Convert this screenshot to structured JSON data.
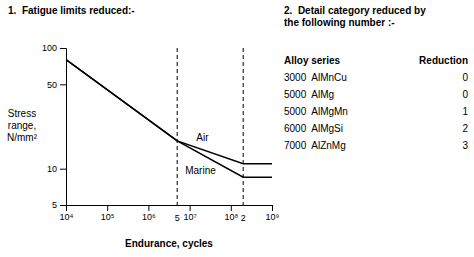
{
  "chart_data": {
    "type": "line",
    "title": "1.  Fatigue limits reduced:-",
    "x_label": "Endurance, cycles",
    "y_label": "Stress\nrange,\nN/mm²",
    "log": true,
    "grid": false,
    "x": [
      10000,
      5000000,
      200000000,
      1000000000
    ],
    "series": [
      {
        "color": "#000000",
        "values": [
          80,
          17,
          11,
          11
        ]
      },
      {
        "color": "#000000",
        "values": [
          80,
          17,
          8.5,
          8.5
        ]
      }
    ],
    "reference_lines": [
      {
        "x": 5000000,
        "line_style": "dashed",
        "color": "#000000"
      },
      {
        "x": 200000000,
        "line_style": "dashed",
        "color": "#000000"
      }
    ],
    "annotations": [
      {
        "text": "Air",
        "x": 13000000,
        "y": 18
      },
      {
        "text": "Marine",
        "x": 7000000,
        "y": 9.5
      },
      {
        "text": "5",
        "x": 5000000,
        "y": 4.2
      },
      {
        "text": "2",
        "x": 200000000,
        "y": 4.2
      }
    ],
    "xlim": [
      10000,
      1000000000
    ],
    "xticks": [
      {
        "value": 10000,
        "label": "10⁴"
      },
      {
        "value": 100000,
        "label": "10⁵"
      },
      {
        "value": 1000000,
        "label": "10⁶"
      },
      {
        "value": 10000000,
        "label": "10⁷"
      },
      {
        "value": 100000000,
        "label": "10⁸"
      },
      {
        "value": 1000000000,
        "label": "10⁹"
      }
    ],
    "ylim": [
      5,
      100
    ],
    "yticks": [
      5,
      10,
      50,
      100
    ]
  },
  "table": {
    "title": "2.  Detail category reduced by\nthe following number :-",
    "columns": [
      "Alloy series",
      "Reduction"
    ],
    "rows": [
      [
        "3000  AlMnCu",
        0
      ],
      [
        "5000  AlMg",
        0
      ],
      [
        "5000  AlMgMn",
        1
      ],
      [
        "6000  AlMgSi",
        2
      ],
      [
        "7000  AlZnMg",
        3
      ]
    ]
  }
}
